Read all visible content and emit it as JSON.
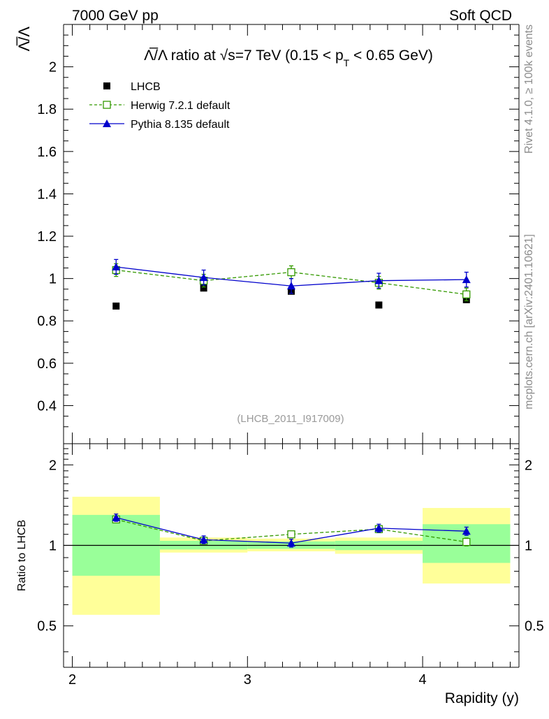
{
  "header": {
    "left": "7000 GeV pp",
    "right": "Soft QCD"
  },
  "side_labels": {
    "rivet": "Rivet 4.1.0, ≥ 100k events",
    "mcplots": "mcplots.cern.ch [arXiv:2401.10621]"
  },
  "chart_data": [
    {
      "type": "scatter",
      "panel": "main",
      "title_parts": {
        "lead": "Λ̅/Λ ratio at √s=7 TeV (0.15 < p",
        "sub": "T",
        "tail": " < 0.65 GeV)"
      },
      "ylabel": "Λ̅/Λ",
      "xlim": [
        1.95,
        4.55
      ],
      "ylim": [
        0.22,
        2.2
      ],
      "yticks": [
        0.4,
        0.6,
        0.8,
        1,
        1.2,
        1.4,
        1.6,
        1.8,
        2
      ],
      "ytick_labels": [
        "0.4",
        "0.6",
        "0.8",
        "1",
        "1.2",
        "1.4",
        "1.6",
        "1.8",
        "2"
      ],
      "analysis_id": "(LHCB_2011_I917009)",
      "legend_position": "top-left",
      "series": [
        {
          "name": "LHCB",
          "style": "data",
          "color": "#000000",
          "x": [
            2.25,
            2.75,
            3.25,
            3.75,
            4.25
          ],
          "y": [
            0.87,
            0.955,
            0.94,
            0.875,
            0.9
          ],
          "err": [
            0.005,
            0.005,
            0.005,
            0.005,
            0.005
          ]
        },
        {
          "name": "Herwig 7.2.1 default",
          "style": "dashed-open-square",
          "color": "#339900",
          "x": [
            2.25,
            2.75,
            3.25,
            3.75,
            4.25
          ],
          "y": [
            1.04,
            0.99,
            1.03,
            0.98,
            0.925
          ],
          "err": [
            0.03,
            0.03,
            0.03,
            0.03,
            0.03
          ]
        },
        {
          "name": "Pythia 8.135 default",
          "style": "solid-filled-triangle",
          "color": "#0000cc",
          "x": [
            2.25,
            2.75,
            3.25,
            3.75,
            4.25
          ],
          "y": [
            1.055,
            1.005,
            0.965,
            0.99,
            0.995
          ],
          "err": [
            0.035,
            0.035,
            0.035,
            0.035,
            0.035
          ]
        }
      ]
    },
    {
      "type": "scatter",
      "panel": "ratio",
      "ylabel": "Ratio to LHCB",
      "xlabel": "Rapidity (y)",
      "xlim": [
        1.95,
        4.55
      ],
      "ylim": [
        0.35,
        2.4
      ],
      "yscale": "log",
      "xticks": [
        2,
        3,
        4
      ],
      "xtick_labels": [
        "2",
        "3",
        "4"
      ],
      "yticks": [
        0.5,
        1,
        2
      ],
      "ytick_labels": [
        "0.5",
        "1",
        "2"
      ],
      "reference_line": 1,
      "bands": [
        {
          "x0": 2.0,
          "x1": 2.5,
          "yellow": [
            0.55,
            1.52
          ],
          "green": [
            0.77,
            1.3
          ]
        },
        {
          "x0": 2.5,
          "x1": 3.0,
          "yellow": [
            0.94,
            1.07
          ],
          "green": [
            0.965,
            1.04
          ]
        },
        {
          "x0": 3.0,
          "x1": 3.5,
          "yellow": [
            0.95,
            1.06
          ],
          "green": [
            0.97,
            1.035
          ]
        },
        {
          "x0": 3.5,
          "x1": 4.0,
          "yellow": [
            0.93,
            1.07
          ],
          "green": [
            0.96,
            1.04
          ]
        },
        {
          "x0": 4.0,
          "x1": 4.5,
          "yellow": [
            0.72,
            1.38
          ],
          "green": [
            0.86,
            1.2
          ]
        }
      ],
      "series": [
        {
          "name": "Herwig 7.2.1 default",
          "style": "dashed-open-square",
          "color": "#339900",
          "x": [
            2.25,
            2.75,
            3.25,
            3.75,
            4.25
          ],
          "y": [
            1.25,
            1.04,
            1.1,
            1.15,
            1.03
          ],
          "err": [
            0.035,
            0.03,
            0.03,
            0.035,
            0.035
          ]
        },
        {
          "name": "Pythia 8.135 default",
          "style": "solid-filled-triangle",
          "color": "#0000cc",
          "x": [
            2.25,
            2.75,
            3.25,
            3.75,
            4.25
          ],
          "y": [
            1.27,
            1.05,
            1.02,
            1.16,
            1.13
          ],
          "err": [
            0.04,
            0.035,
            0.035,
            0.04,
            0.04
          ]
        }
      ]
    }
  ]
}
